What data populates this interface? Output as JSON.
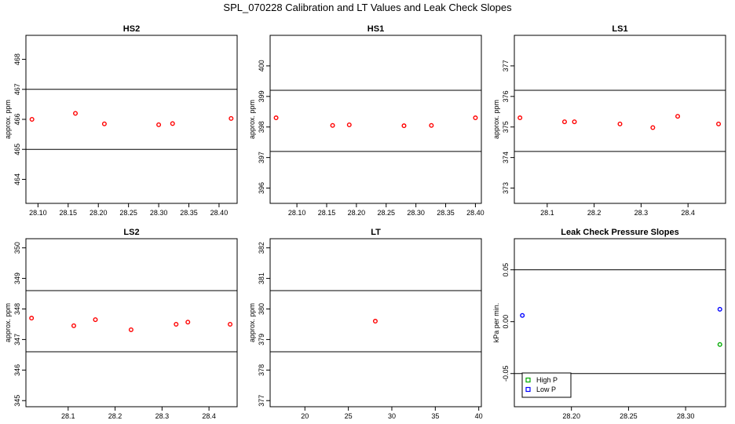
{
  "figure": {
    "title": "SPL_070228  Calibration and LT Values and Leak Check Slopes"
  },
  "chart_data": [
    {
      "type": "scatter",
      "title": "HS2",
      "ylabel": "approx. ppm",
      "xlim": [
        28.08,
        28.43
      ],
      "ylim": [
        463.2,
        468.8
      ],
      "xticks": [
        28.1,
        28.15,
        28.2,
        28.25,
        28.3,
        28.35,
        28.4
      ],
      "xtick_labels": [
        "28.10",
        "28.15",
        "28.20",
        "28.25",
        "28.30",
        "28.35",
        "28.40"
      ],
      "yticks": [
        464,
        465,
        466,
        467,
        468
      ],
      "ytick_labels": [
        "464",
        "465",
        "466",
        "467",
        "468"
      ],
      "hlines": [
        467.0,
        465.0
      ],
      "series": [
        {
          "color": "#ff0000",
          "marker": "circle",
          "x": [
            28.09,
            28.162,
            28.21,
            28.3,
            28.323,
            28.42
          ],
          "y": [
            466.0,
            466.2,
            465.85,
            465.82,
            465.86,
            466.03
          ]
        }
      ]
    },
    {
      "type": "scatter",
      "title": "HS1",
      "ylabel": "approx. ppm",
      "xlim": [
        28.055,
        28.41
      ],
      "ylim": [
        395.5,
        401.0
      ],
      "xticks": [
        28.1,
        28.15,
        28.2,
        28.25,
        28.3,
        28.35,
        28.4
      ],
      "xtick_labels": [
        "28.10",
        "28.15",
        "28.20",
        "28.25",
        "28.30",
        "28.35",
        "28.40"
      ],
      "yticks": [
        396,
        397,
        398,
        399,
        400
      ],
      "ytick_labels": [
        "396",
        "397",
        "398",
        "399",
        "400"
      ],
      "hlines": [
        399.2,
        397.2
      ],
      "series": [
        {
          "color": "#ff0000",
          "marker": "circle",
          "x": [
            28.065,
            28.16,
            28.188,
            28.28,
            28.326,
            28.4
          ],
          "y": [
            398.3,
            398.05,
            398.07,
            398.04,
            398.05,
            398.3
          ]
        }
      ]
    },
    {
      "type": "scatter",
      "title": "LS1",
      "ylabel": "approx. ppm",
      "xlim": [
        28.03,
        28.48
      ],
      "ylim": [
        372.5,
        378.0
      ],
      "xticks": [
        28.1,
        28.2,
        28.3,
        28.4
      ],
      "xtick_labels": [
        "28.1",
        "28.2",
        "28.3",
        "28.4"
      ],
      "yticks": [
        373,
        374,
        375,
        376,
        377
      ],
      "ytick_labels": [
        "373",
        "374",
        "375",
        "376",
        "377"
      ],
      "hlines": [
        376.2,
        374.2
      ],
      "series": [
        {
          "color": "#ff0000",
          "marker": "circle",
          "x": [
            28.042,
            28.137,
            28.158,
            28.255,
            28.325,
            28.378,
            28.465
          ],
          "y": [
            375.3,
            375.17,
            375.17,
            375.1,
            374.98,
            375.35,
            375.1
          ]
        }
      ]
    },
    {
      "type": "scatter",
      "title": "LS2",
      "ylabel": "approx. ppm",
      "xlim": [
        28.01,
        28.46
      ],
      "ylim": [
        344.8,
        350.3
      ],
      "xticks": [
        28.1,
        28.2,
        28.3,
        28.4
      ],
      "xtick_labels": [
        "28.1",
        "28.2",
        "28.3",
        "28.4"
      ],
      "yticks": [
        345,
        346,
        347,
        348,
        349,
        350
      ],
      "ytick_labels": [
        "345",
        "346",
        "347",
        "348",
        "349",
        "350"
      ],
      "hlines": [
        348.6,
        346.6
      ],
      "series": [
        {
          "color": "#ff0000",
          "marker": "circle",
          "x": [
            28.022,
            28.112,
            28.158,
            28.234,
            28.33,
            28.355,
            28.445
          ],
          "y": [
            347.7,
            347.45,
            347.65,
            347.32,
            347.5,
            347.57,
            347.5
          ]
        }
      ]
    },
    {
      "type": "scatter",
      "title": "LT",
      "ylabel": "approx. ppm",
      "xlim": [
        16.0,
        40.3
      ],
      "ylim": [
        376.8,
        382.3
      ],
      "xticks": [
        20,
        25,
        30,
        35,
        40
      ],
      "xtick_labels": [
        "20",
        "25",
        "30",
        "35",
        "40"
      ],
      "yticks": [
        377,
        378,
        379,
        380,
        381,
        382
      ],
      "ytick_labels": [
        "377",
        "378",
        "379",
        "380",
        "381",
        "382"
      ],
      "hlines": [
        380.6,
        378.6
      ],
      "series": [
        {
          "color": "#ff0000",
          "marker": "circle",
          "x": [
            28.1
          ],
          "y": [
            379.6
          ]
        }
      ]
    },
    {
      "type": "scatter",
      "title": "Leak Check Pressure Slopes",
      "ylabel": "kPa per min.",
      "xlim": [
        28.15,
        28.335
      ],
      "ylim": [
        -0.082,
        0.08
      ],
      "xticks": [
        28.2,
        28.25,
        28.3
      ],
      "xtick_labels": [
        "28.20",
        "28.25",
        "28.30"
      ],
      "yticks": [
        -0.05,
        0.0,
        0.05
      ],
      "ytick_labels": [
        "-0.05",
        "0.00",
        "0.05"
      ],
      "hlines": [
        0.05,
        -0.05
      ],
      "legend": {
        "position": "bottom-left",
        "entries": [
          {
            "label": "High P",
            "color": "#00aa00"
          },
          {
            "label": "Low P",
            "color": "#0000ff"
          }
        ]
      },
      "series": [
        {
          "name": "High P",
          "color": "#00aa00",
          "marker": "circle",
          "x": [
            28.33
          ],
          "y": [
            -0.022
          ]
        },
        {
          "name": "Low P",
          "color": "#0000ff",
          "marker": "circle",
          "x": [
            28.157,
            28.33
          ],
          "y": [
            0.006,
            0.012
          ]
        }
      ]
    }
  ]
}
